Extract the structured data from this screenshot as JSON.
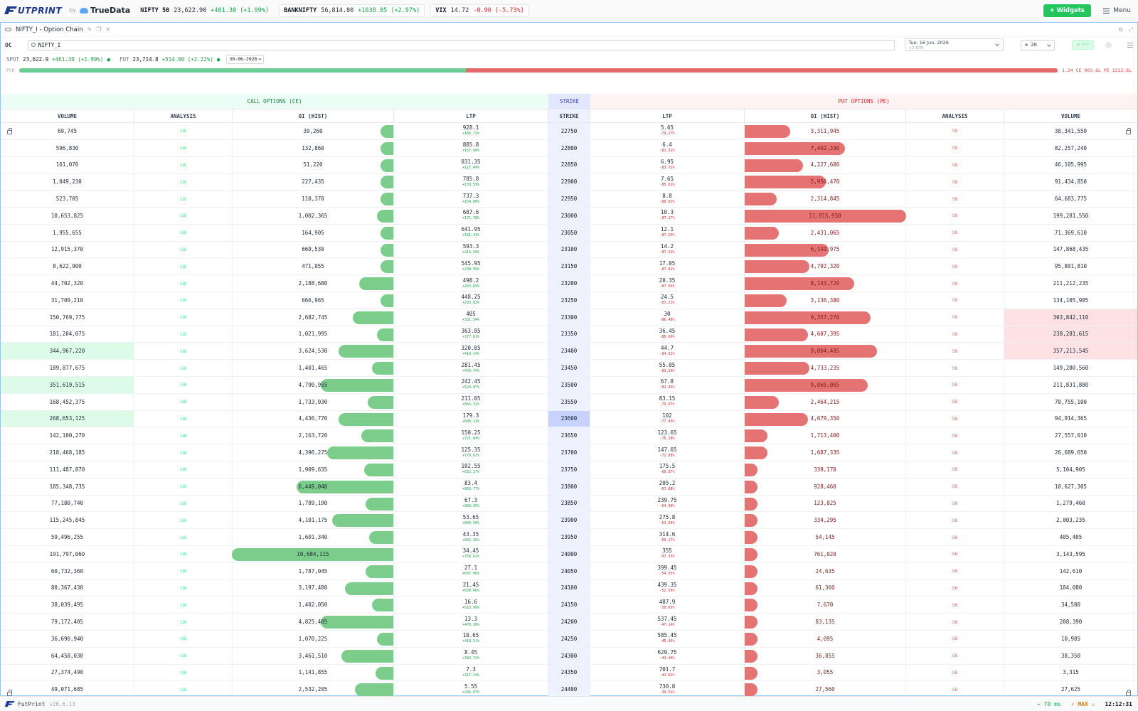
{
  "topbar": {
    "logo": "UTPRINT",
    "by": "by",
    "truedata": "TrueData",
    "tickers": [
      {
        "name": "NIFTY 50",
        "value": "23,622.90",
        "change": "+461.30 (+1.99%)",
        "dir": "up"
      },
      {
        "name": "BANKNIFTY",
        "value": "56,814.80",
        "change": "+1638.05 (+2.97%)",
        "dir": "up"
      },
      {
        "name": "VIX",
        "value": "14.72",
        "change": "-0.90 (-5.73%)",
        "dir": "dn"
      }
    ],
    "widgets_label": "+ Widgets",
    "menu_label": "Menu"
  },
  "panel": {
    "title": "NIFTY_I - Option Chain",
    "oc_label": "OC",
    "search_value": "NIFTY_I",
    "date_main": "Tue, 16 Jun, 2026",
    "date_sub": "+2 DTE",
    "count_value": "± 20",
    "toggle_label": "● ATM",
    "spot_label": "SPOT",
    "spot_value": "23,622.9",
    "spot_change": "+461.30 (+1.99%)",
    "fut_label": "FUT",
    "fut_value": "23,714.8",
    "fut_change": "+514.00 (+2.22%)",
    "expiry": "30-06-2026",
    "pcr_label": "PCR",
    "pcr_value": 0.43,
    "pcr_text": "1.34  CE 903.6L  PE 1213.8L"
  },
  "table": {
    "call_header": "CALL OPTIONS (CE)",
    "strike_header": "STRIKE",
    "put_header": "PUT OPTIONS (PE)",
    "columns": {
      "volume": "VOLUME",
      "analysis": "ANALYSIS",
      "oi": "OI (HIST)",
      "ltp": "LTP",
      "strike": "STRIKE"
    },
    "atm_strike": "23600",
    "rows": [
      {
        "cv": "69,745",
        "ca": "LB",
        "coi": "39,260",
        "cb": 0.08,
        "cl": "928.1",
        "cc": "+186.73%",
        "s": "22750",
        "pl": "5.65",
        "pc": "-79.27%",
        "poi": "3,311,945",
        "pb": 0.28,
        "pa": "SB",
        "pv": "38,341,550"
      },
      {
        "cv": "596,830",
        "ca": "LB",
        "coi": "132,860",
        "cb": 0.08,
        "cl": "885.8",
        "cc": "+157.96%",
        "s": "22800",
        "pl": "6.4",
        "pc": "-81.31%",
        "poi": "7,402,330",
        "pb": 0.62,
        "pa": "SB",
        "pv": "82,257,240"
      },
      {
        "cv": "161,070",
        "ca": "LB",
        "coi": "51,220",
        "cb": 0.08,
        "cl": "831.35",
        "cc": "+127.49%",
        "s": "22850",
        "pl": "6.95",
        "pc": "-83.72%",
        "poi": "4,227,600",
        "pb": 0.36,
        "pa": "SB",
        "pv": "46,105,995"
      },
      {
        "cv": "1,049,230",
        "ca": "LB",
        "coi": "227,435",
        "cb": 0.08,
        "cl": "785.8",
        "cc": "+139.59%",
        "s": "22900",
        "pl": "7.65",
        "pc": "-85.61%",
        "poi": "5,956,470",
        "pb": 0.5,
        "pa": "SB",
        "pv": "91,434,850"
      },
      {
        "cv": "523,705",
        "ca": "LB",
        "coi": "110,370",
        "cb": 0.08,
        "cl": "737.3",
        "cc": "+154.00%",
        "s": "22950",
        "pl": "8.8",
        "pc": "-86.02%",
        "poi": "2,314,845",
        "pb": 0.2,
        "pa": "SB",
        "pv": "64,683,775"
      },
      {
        "cv": "10,653,825",
        "ca": "LB",
        "coi": "1,002,365",
        "cb": 0.1,
        "cl": "687.6",
        "cc": "+171.78%",
        "s": "23000",
        "pl": "10.3",
        "pc": "-87.17%",
        "poi": "11,915,930",
        "pb": 1.0,
        "pa": "SB",
        "pv": "199,281,550"
      },
      {
        "cv": "1,955,655",
        "ca": "LB",
        "coi": "164,905",
        "cb": 0.08,
        "cl": "641.95",
        "cc": "+191.33%",
        "s": "23050",
        "pl": "12.1",
        "pc": "-87.59%",
        "poi": "2,431,065",
        "pb": 0.21,
        "pa": "SB",
        "pv": "71,369,610"
      },
      {
        "cv": "12,915,370",
        "ca": "LB",
        "coi": "660,530",
        "cb": 0.08,
        "cl": "593.3",
        "cc": "+213.58%",
        "s": "23100",
        "pl": "14.2",
        "pc": "-87.91%",
        "poi": "6,149,975",
        "pb": 0.52,
        "pa": "SB",
        "pv": "147,868,435"
      },
      {
        "cv": "8,622,900",
        "ca": "LB",
        "coi": "471,055",
        "cb": 0.08,
        "cl": "545.95",
        "cc": "+238.99%",
        "s": "23150",
        "pl": "17.05",
        "pc": "-87.81%",
        "poi": "4,792,320",
        "pb": 0.4,
        "pa": "SB",
        "pv": "95,801,810"
      },
      {
        "cv": "44,702,320",
        "ca": "LB",
        "coi": "2,188,680",
        "cb": 0.21,
        "cl": "498.2",
        "cc": "+263.65%",
        "s": "23200",
        "pl": "20.35",
        "pc": "-87.56%",
        "poi": "8,143,720",
        "pb": 0.68,
        "pa": "SB",
        "pv": "211,212,235"
      },
      {
        "cv": "31,709,210",
        "ca": "LB",
        "coi": "666,965",
        "cb": 0.08,
        "cl": "448.25",
        "cc": "+293.83%",
        "s": "23250",
        "pl": "24.5",
        "pc": "-87.21%",
        "poi": "3,136,380",
        "pb": 0.26,
        "pa": "SB",
        "pv": "134,105,985"
      },
      {
        "cv": "150,769,775",
        "ca": "LB",
        "coi": "2,682,745",
        "cb": 0.25,
        "cl": "405",
        "cc": "+331.54%",
        "s": "23300",
        "pl": "30",
        "pc": "-86.48%",
        "poi": "9,357,270",
        "pb": 0.78,
        "pa": "SB",
        "pv": "303,842,110",
        "pvh": true
      },
      {
        "cv": "181,204,075",
        "ca": "LB",
        "coi": "1,021,995",
        "cb": 0.1,
        "cl": "363.85",
        "cc": "+377.81%",
        "s": "23350",
        "pl": "36.45",
        "pc": "-85.60%",
        "poi": "4,607,395",
        "pb": 0.39,
        "pa": "SB",
        "pv": "238,281,615",
        "pvh": true
      },
      {
        "cv": "344,967,220",
        "ca": "LB",
        "coi": "3,624,530",
        "cb": 0.34,
        "cl": "320.05",
        "cc": "+419.14%",
        "s": "23400",
        "pl": "44.7",
        "pc": "-84.52%",
        "poi": "9,004,405",
        "pb": 0.82,
        "pa": "SB",
        "pv": "357,213,545",
        "cvh": true,
        "pvh": true
      },
      {
        "cv": "189,877,675",
        "ca": "LB",
        "coi": "1,401,465",
        "cb": 0.13,
        "cl": "281.45",
        "cc": "+476.74%",
        "s": "23450",
        "pl": "55.05",
        "pc": "-83.59%",
        "poi": "4,733,235",
        "pb": 0.4,
        "pa": "SB",
        "pv": "149,280,560"
      },
      {
        "cv": "351,619,515",
        "ca": "LB",
        "coi": "4,790,955",
        "cb": 0.45,
        "cl": "242.45",
        "cc": "+524.87%",
        "s": "23500",
        "pl": "67.8",
        "pc": "-81.45%",
        "poi": "9,068,085",
        "pb": 0.76,
        "pa": "SB",
        "pv": "211,831,880",
        "cvh": true
      },
      {
        "cv": "168,452,375",
        "ca": "LB",
        "coi": "1,733,030",
        "cb": 0.16,
        "cl": "211.05",
        "cc": "+564.32%",
        "s": "23550",
        "pl": "83.15",
        "pc": "-79.67%",
        "poi": "2,464,215",
        "pb": 0.21,
        "pa": "SB",
        "pv": "70,755,100"
      },
      {
        "cv": "268,653,125",
        "ca": "LB",
        "coi": "4,436,770",
        "cb": 0.34,
        "cl": "179.3",
        "cc": "+608.13%",
        "s": "23600",
        "pl": "102",
        "pc": "-77.43%",
        "poi": "4,679,350",
        "pb": 0.39,
        "pa": "SB",
        "pv": "94,914,365",
        "cvh": true
      },
      {
        "cv": "142,100,270",
        "ca": "LB",
        "coi": "2,163,720",
        "cb": 0.2,
        "cl": "150.25",
        "cc": "+721.84%",
        "s": "23650",
        "pl": "123.65",
        "pc": "-75.28%",
        "poi": "1,713,400",
        "pb": 0.14,
        "pa": "SB",
        "pv": "27,557,010"
      },
      {
        "cv": "218,468,185",
        "ca": "LB",
        "coi": "4,396,275",
        "cb": 0.41,
        "cl": "125.35",
        "cc": "+779.61%",
        "s": "23700",
        "pl": "147.65",
        "pc": "-72.88%",
        "poi": "1,687,335",
        "pb": 0.14,
        "pa": "SB",
        "pv": "26,689,650"
      },
      {
        "cv": "111,487,870",
        "ca": "LB",
        "coi": "1,909,635",
        "cb": 0.18,
        "cl": "102.55",
        "cc": "+832.27%",
        "s": "23750",
        "pl": "175.5",
        "pc": "-69.87%",
        "poi": "339,170",
        "pb": 0.08,
        "pa": "SB",
        "pv": "5,104,905"
      },
      {
        "cv": "185,348,735",
        "ca": "LB",
        "coi": "6,449,040",
        "cb": 0.6,
        "cl": "83.4",
        "cc": "+869.77%",
        "s": "23800",
        "pl": "205.2",
        "pc": "-67.88%",
        "poi": "928,460",
        "pb": 0.08,
        "pa": "SB",
        "pv": "10,627,305"
      },
      {
        "cv": "77,180,740",
        "ca": "LB",
        "coi": "1,789,190",
        "cb": 0.17,
        "cl": "67.3",
        "cc": "+868.35%",
        "s": "23850",
        "pl": "239.75",
        "pc": "-64.99%",
        "poi": "123,825",
        "pb": 0.08,
        "pa": "SB",
        "pv": "1,279,460"
      },
      {
        "cv": "115,245,845",
        "ca": "LB",
        "coi": "4,101,175",
        "cb": 0.38,
        "cl": "53.65",
        "cc": "+849.56%",
        "s": "23900",
        "pl": "275.8",
        "pc": "-61.94%",
        "poi": "334,295",
        "pb": 0.08,
        "pa": "SB",
        "pv": "2,003,235"
      },
      {
        "cv": "59,496,255",
        "ca": "LB",
        "coi": "1,601,340",
        "cb": 0.15,
        "cl": "43.35",
        "cc": "+832.26%",
        "s": "23950",
        "pl": "314.6",
        "pc": "-59.17%",
        "poi": "54,145",
        "pb": 0.08,
        "pa": "SB",
        "pv": "405,405"
      },
      {
        "cv": "191,797,060",
        "ca": "LB",
        "coi": "10,684,115",
        "cb": 1.0,
        "cl": "34.45",
        "cc": "+758.62%",
        "s": "24000",
        "pl": "355",
        "pc": "-57.33%",
        "poi": "761,020",
        "pb": 0.08,
        "pa": "SB",
        "pv": "3,143,595"
      },
      {
        "cv": "60,732,360",
        "ca": "LB",
        "coi": "1,787,045",
        "cb": 0.17,
        "cl": "27.1",
        "cc": "+697.06%",
        "s": "24050",
        "pl": "399.45",
        "pc": "-54.55%",
        "poi": "24,635",
        "pb": 0.08,
        "pa": "SB",
        "pv": "142,610"
      },
      {
        "cv": "80,367,430",
        "ca": "LB",
        "coi": "3,197,480",
        "cb": 0.3,
        "cl": "21.45",
        "cc": "+639.66%",
        "s": "24100",
        "pl": "439.35",
        "pc": "-52.59%",
        "poi": "61,360",
        "pb": 0.08,
        "pa": "SB",
        "pv": "184,080"
      },
      {
        "cv": "38,039,495",
        "ca": "LB",
        "coi": "1,402,050",
        "cb": 0.13,
        "cl": "16.6",
        "cc": "+518.90%",
        "s": "24150",
        "pl": "487.9",
        "pc": "-50.65%",
        "poi": "7,670",
        "pb": 0.08,
        "pa": "SB",
        "pv": "34,580"
      },
      {
        "cv": "79,172,405",
        "ca": "LB",
        "coi": "4,825,405",
        "cb": 0.45,
        "cl": "13.3",
        "cc": "+478.26%",
        "s": "24200",
        "pl": "537.45",
        "pc": "-47.14%",
        "poi": "83,135",
        "pb": 0.08,
        "pa": "SB",
        "pv": "208,390"
      },
      {
        "cv": "36,690,940",
        "ca": "LB",
        "coi": "1,070,225",
        "cb": 0.1,
        "cl": "10.65",
        "cc": "+419.51%",
        "s": "24250",
        "pl": "585.45",
        "pc": "-45.45%",
        "poi": "4,095",
        "pb": 0.08,
        "pa": "SB",
        "pv": "10,985"
      },
      {
        "cv": "64,458,030",
        "ca": "LB",
        "coi": "3,461,510",
        "cb": 0.32,
        "cl": "8.45",
        "cc": "+344.74%",
        "s": "24300",
        "pl": "629.75",
        "pc": "-43.44%",
        "poi": "36,855",
        "pb": 0.08,
        "pa": "SB",
        "pv": "38,350"
      },
      {
        "cv": "27,374,490",
        "ca": "LB",
        "coi": "1,141,855",
        "cb": 0.11,
        "cl": "7.3",
        "cc": "+317.14%",
        "s": "24350",
        "pl": "701.7",
        "pc": "-41.82%",
        "poi": "3,055",
        "pb": 0.08,
        "pa": "SB",
        "pv": "3,315"
      },
      {
        "cv": "49,071,685",
        "ca": "LB",
        "coi": "2,532,205",
        "cb": 0.24,
        "cl": "5.55",
        "cc": "+246.67%",
        "s": "24400",
        "pl": "730.8",
        "pc": "-39.52%",
        "poi": "27,560",
        "pb": 0.08,
        "pa": "SB",
        "pv": "27,625"
      }
    ]
  },
  "status": {
    "app": "FutPrint",
    "version": "v26.6.13",
    "latency": "70 ms",
    "max_label": "MAX",
    "time": "12:12:31"
  },
  "colors": {
    "ce_bar": "#7ccd8c",
    "pe_bar": "#e57373",
    "accent": "#22c55e",
    "put_red": "#dc2626"
  }
}
